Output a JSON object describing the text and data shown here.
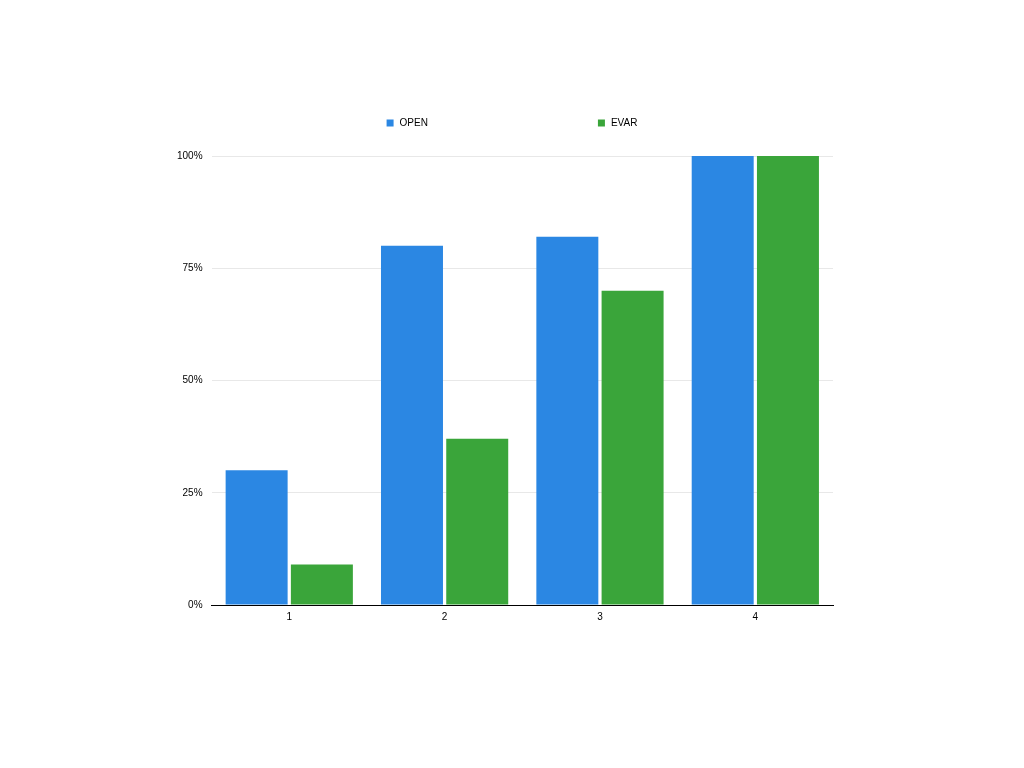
{
  "chart_data": {
    "type": "bar",
    "categories": [
      "1",
      "2",
      "3",
      "4"
    ],
    "series": [
      {
        "name": "OPEN",
        "color": "#2b87e3",
        "values": [
          30,
          80,
          82,
          100
        ]
      },
      {
        "name": "EVAR",
        "color": "#3aa53a",
        "values": [
          9,
          37,
          70,
          100
        ]
      }
    ],
    "ylim": [
      0,
      100
    ],
    "yticks": [
      {
        "value": 0,
        "label": "0%"
      },
      {
        "value": 25,
        "label": "25%"
      },
      {
        "value": 50,
        "label": "50%"
      },
      {
        "value": 75,
        "label": "75%"
      },
      {
        "value": 100,
        "label": "100%"
      }
    ],
    "grid": "y",
    "legend": "top"
  }
}
